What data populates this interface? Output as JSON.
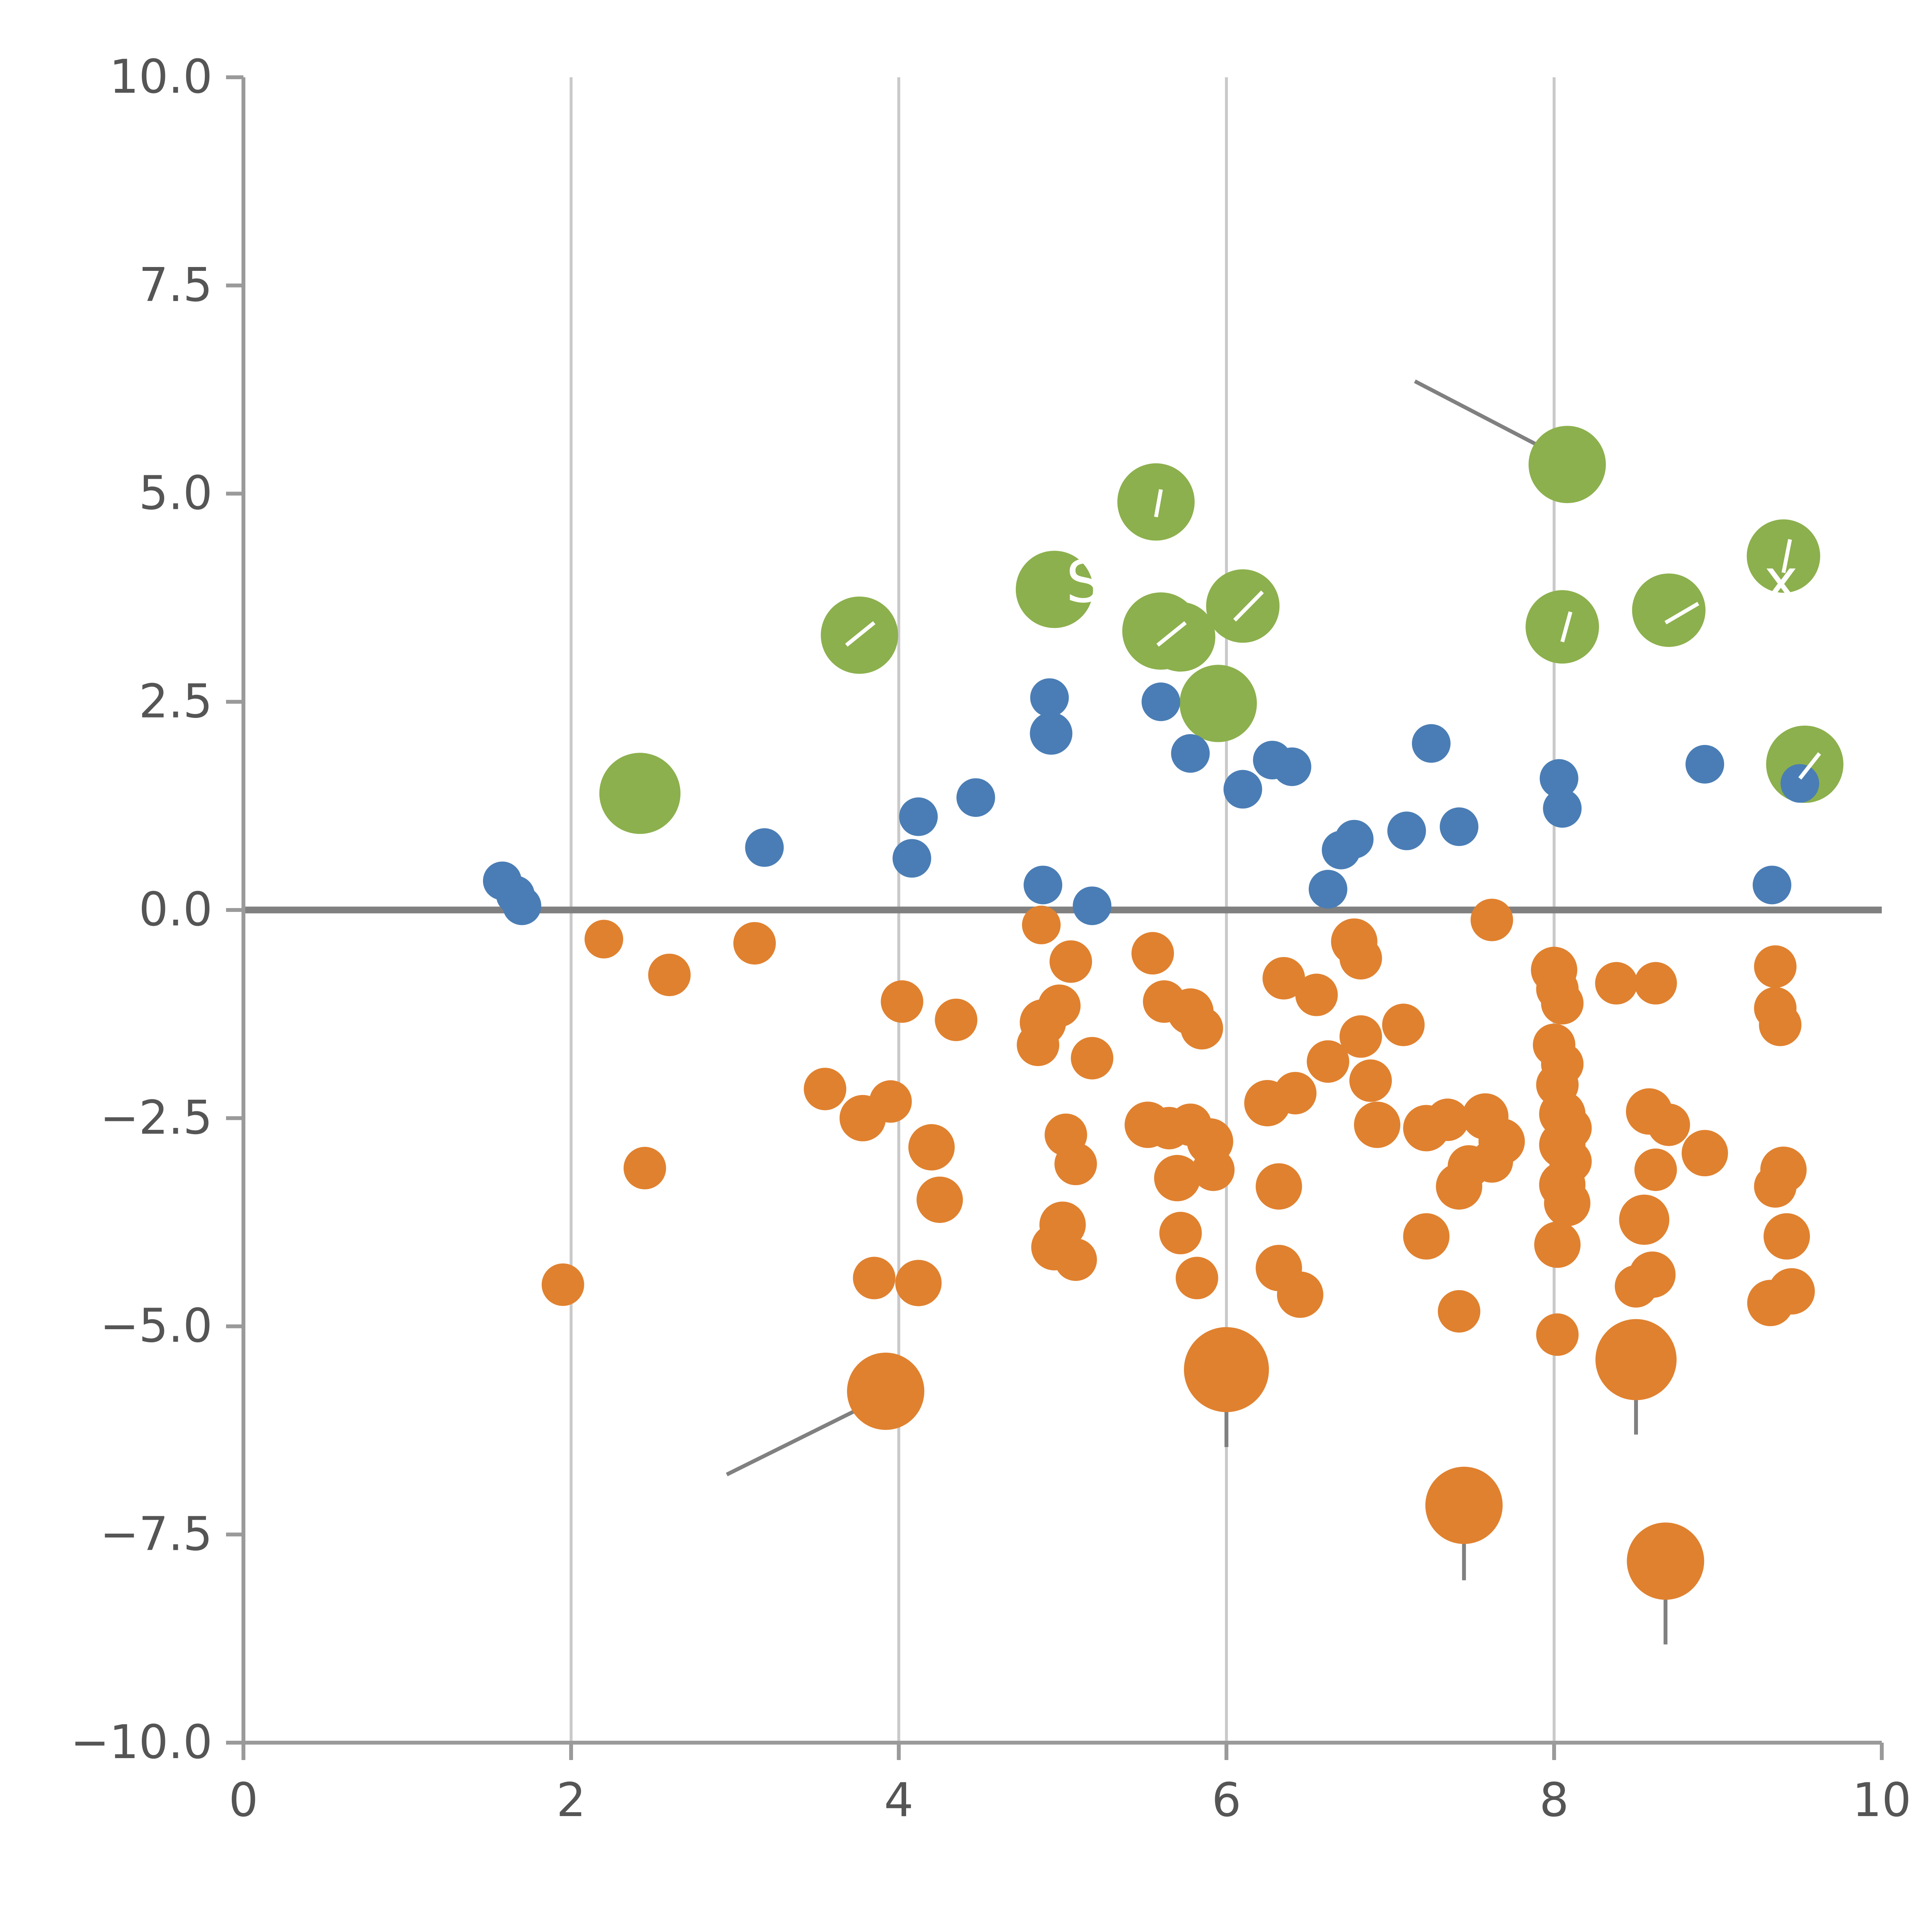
{
  "chart_data": {
    "type": "scatter",
    "title": "",
    "xlabel": "",
    "ylabel": "",
    "xlim": [
      0,
      10
    ],
    "ylim": [
      -10,
      10
    ],
    "x_ticks": [
      0,
      2,
      4,
      6,
      8,
      10
    ],
    "x_tick_labels": [
      "0",
      "2",
      "4",
      "6",
      "8",
      "10"
    ],
    "y_ticks": [
      10.0,
      7.5,
      5.0,
      2.5,
      0.0,
      -2.5,
      -5.0,
      -7.5,
      -10.0
    ],
    "y_tick_labels": [
      "10.0",
      "7.5",
      "5.0",
      "2.5",
      "0.0",
      "−2.5",
      "−5.0",
      "−7.5",
      "−10.0"
    ],
    "grid": "vertical-only",
    "grid_lines_x": [
      2,
      4,
      6,
      8
    ],
    "zero_line": {
      "y": 0,
      "color": "#808080",
      "width": 3.5
    },
    "legend": "none",
    "colors": {
      "blue": "#4a7db5",
      "green": "#8cb04d",
      "orange": "#e0812f",
      "grid": "#c9c9c9",
      "axis": "#9a9a9a",
      "tick_label": "#555555",
      "leader": "#808080",
      "white_annotation": "#ffffff"
    },
    "series": [
      {
        "name": "blue",
        "color": "#4a7db5",
        "points": [
          [
            1.58,
            0.35,
            10
          ],
          [
            1.66,
            0.18,
            10
          ],
          [
            1.7,
            0.05,
            10
          ],
          [
            3.18,
            0.75,
            10
          ],
          [
            4.08,
            0.62,
            10
          ],
          [
            4.12,
            1.12,
            10
          ],
          [
            4.47,
            1.35,
            10
          ],
          [
            4.88,
            0.3,
            10
          ],
          [
            4.93,
            2.12,
            11
          ],
          [
            4.92,
            2.55,
            10
          ],
          [
            5.18,
            0.05,
            10
          ],
          [
            5.6,
            2.5,
            10
          ],
          [
            5.78,
            1.88,
            10
          ],
          [
            6.1,
            1.45,
            10
          ],
          [
            6.28,
            1.8,
            10
          ],
          [
            6.4,
            1.72,
            10
          ],
          [
            6.62,
            0.25,
            10
          ],
          [
            6.7,
            0.72,
            10
          ],
          [
            6.78,
            0.85,
            10
          ],
          [
            7.1,
            0.95,
            10
          ],
          [
            7.25,
            2.0,
            10
          ],
          [
            7.42,
            1.0,
            10
          ],
          [
            8.03,
            1.58,
            10
          ],
          [
            8.05,
            1.22,
            10
          ],
          [
            8.92,
            1.75,
            10
          ],
          [
            9.33,
            0.3,
            10
          ],
          [
            9.5,
            1.52,
            10
          ]
        ]
      },
      {
        "name": "green",
        "color": "#8cb04d",
        "points": [
          [
            2.42,
            1.4,
            21
          ],
          [
            3.76,
            3.3,
            20
          ],
          [
            4.95,
            3.85,
            20
          ],
          [
            5.57,
            4.9,
            20
          ],
          [
            5.6,
            3.35,
            20
          ],
          [
            5.72,
            3.28,
            18
          ],
          [
            6.1,
            3.65,
            19
          ],
          [
            5.95,
            2.48,
            20
          ],
          [
            8.08,
            5.35,
            20
          ],
          [
            8.05,
            3.4,
            19
          ],
          [
            8.7,
            3.6,
            19
          ],
          [
            9.4,
            4.25,
            19
          ],
          [
            9.53,
            1.75,
            20
          ]
        ]
      },
      {
        "name": "orange",
        "color": "#e0812f",
        "points": [
          [
            2.2,
            -0.35,
            10
          ],
          [
            2.6,
            -0.78,
            11
          ],
          [
            3.12,
            -0.4,
            11
          ],
          [
            1.95,
            -4.5,
            11
          ],
          [
            2.45,
            -3.1,
            11
          ],
          [
            3.55,
            -2.15,
            11
          ],
          [
            3.78,
            -2.5,
            12
          ],
          [
            3.95,
            -2.3,
            11
          ],
          [
            4.02,
            -1.1,
            11
          ],
          [
            4.35,
            -1.32,
            11
          ],
          [
            4.2,
            -2.85,
            12
          ],
          [
            4.25,
            -3.48,
            12
          ],
          [
            3.85,
            -4.42,
            11
          ],
          [
            4.12,
            -4.48,
            12
          ],
          [
            3.92,
            -5.78,
            20
          ],
          [
            4.87,
            -0.18,
            10
          ],
          [
            5.05,
            -0.62,
            11
          ],
          [
            4.88,
            -1.35,
            12
          ],
          [
            4.98,
            -1.15,
            11
          ],
          [
            4.85,
            -1.62,
            11
          ],
          [
            5.18,
            -1.78,
            11
          ],
          [
            5.02,
            -2.7,
            11
          ],
          [
            5.08,
            -3.05,
            11
          ],
          [
            5.0,
            -3.78,
            12
          ],
          [
            4.95,
            -4.05,
            12
          ],
          [
            5.08,
            -4.2,
            11
          ],
          [
            5.55,
            -0.52,
            11
          ],
          [
            5.62,
            -1.1,
            11
          ],
          [
            5.78,
            -1.22,
            12
          ],
          [
            5.85,
            -1.42,
            11
          ],
          [
            5.52,
            -2.58,
            12
          ],
          [
            5.65,
            -2.62,
            11
          ],
          [
            5.78,
            -2.58,
            11
          ],
          [
            5.9,
            -2.78,
            12
          ],
          [
            5.7,
            -3.22,
            12
          ],
          [
            5.92,
            -3.12,
            11
          ],
          [
            5.72,
            -3.88,
            11
          ],
          [
            5.82,
            -4.42,
            11
          ],
          [
            6.0,
            -5.52,
            22
          ],
          [
            6.35,
            -0.82,
            11
          ],
          [
            6.55,
            -1.02,
            11
          ],
          [
            6.25,
            -2.32,
            12
          ],
          [
            6.42,
            -2.2,
            11
          ],
          [
            6.32,
            -3.32,
            12
          ],
          [
            6.32,
            -4.3,
            12
          ],
          [
            6.45,
            -4.62,
            12
          ],
          [
            6.62,
            -1.82,
            11
          ],
          [
            6.78,
            -0.38,
            12
          ],
          [
            6.82,
            -0.58,
            11
          ],
          [
            6.82,
            -1.52,
            11
          ],
          [
            6.88,
            -2.05,
            11
          ],
          [
            6.92,
            -2.58,
            12
          ],
          [
            7.08,
            -1.38,
            11
          ],
          [
            7.22,
            -2.62,
            12
          ],
          [
            7.35,
            -2.52,
            11
          ],
          [
            7.22,
            -3.92,
            12
          ],
          [
            7.42,
            -3.32,
            12
          ],
          [
            7.48,
            -3.08,
            11
          ],
          [
            7.42,
            -4.82,
            11
          ],
          [
            7.45,
            -7.15,
            20
          ],
          [
            7.62,
            -0.12,
            11
          ],
          [
            7.58,
            -2.48,
            12
          ],
          [
            7.68,
            -2.78,
            12
          ],
          [
            7.62,
            -3.02,
            11
          ],
          [
            8.0,
            -0.72,
            12
          ],
          [
            8.02,
            -0.95,
            11
          ],
          [
            8.05,
            -1.12,
            11
          ],
          [
            8.0,
            -1.62,
            11
          ],
          [
            8.05,
            -1.85,
            11
          ],
          [
            8.02,
            -2.1,
            11
          ],
          [
            8.05,
            -2.45,
            12
          ],
          [
            8.1,
            -2.62,
            11
          ],
          [
            8.05,
            -2.82,
            12
          ],
          [
            8.1,
            -3.02,
            11
          ],
          [
            8.05,
            -3.3,
            12
          ],
          [
            8.08,
            -3.52,
            12
          ],
          [
            8.02,
            -4.02,
            12
          ],
          [
            8.02,
            -5.1,
            11
          ],
          [
            8.38,
            -0.88,
            11
          ],
          [
            8.5,
            -5.4,
            21
          ],
          [
            8.55,
            -3.72,
            13
          ],
          [
            8.62,
            -0.88,
            11
          ],
          [
            8.58,
            -2.42,
            12
          ],
          [
            8.7,
            -2.58,
            11
          ],
          [
            8.62,
            -3.12,
            11
          ],
          [
            8.6,
            -4.38,
            12
          ],
          [
            8.5,
            -4.52,
            11
          ],
          [
            8.68,
            -7.82,
            20
          ],
          [
            8.92,
            -2.92,
            12
          ],
          [
            9.35,
            -0.68,
            11
          ],
          [
            9.35,
            -1.18,
            11
          ],
          [
            9.38,
            -1.38,
            11
          ],
          [
            9.4,
            -3.12,
            12
          ],
          [
            9.35,
            -3.32,
            11
          ],
          [
            9.42,
            -3.92,
            12
          ],
          [
            9.32,
            -4.72,
            12
          ],
          [
            9.45,
            -4.58,
            12
          ]
        ]
      }
    ],
    "leader_lines": [
      {
        "x1": 7.15,
        "y1": 6.35,
        "x2": 8.0,
        "y2": 5.48,
        "color": "#808080",
        "width": 2
      },
      {
        "x1": 2.95,
        "y1": -6.78,
        "x2": 3.8,
        "y2": -5.95,
        "color": "#808080",
        "width": 2
      },
      {
        "x1": 6.0,
        "y1": -5.95,
        "x2": 6.0,
        "y2": -6.45,
        "color": "#808080",
        "width": 2
      },
      {
        "x1": 7.45,
        "y1": -7.6,
        "x2": 7.45,
        "y2": -8.05,
        "color": "#808080",
        "width": 2
      },
      {
        "x1": 8.5,
        "y1": -5.85,
        "x2": 8.5,
        "y2": -6.3,
        "color": "#808080",
        "width": 2
      },
      {
        "x1": 8.68,
        "y1": -8.28,
        "x2": 8.68,
        "y2": -8.82,
        "color": "#808080",
        "width": 2
      },
      {
        "x1": 5.57,
        "y1": 4.72,
        "x2": 5.6,
        "y2": 5.05,
        "color": "#ffffff",
        "width": 2
      },
      {
        "x1": 9.4,
        "y1": 4.05,
        "x2": 9.44,
        "y2": 4.45,
        "color": "#ffffff",
        "width": 2
      },
      {
        "x1": 8.05,
        "y1": 3.22,
        "x2": 8.1,
        "y2": 3.58,
        "color": "#ffffff",
        "width": 2
      },
      {
        "x1": 3.68,
        "y1": 3.18,
        "x2": 3.85,
        "y2": 3.45,
        "color": "#ffffff",
        "width": 2
      },
      {
        "x1": 6.05,
        "y1": 3.48,
        "x2": 6.22,
        "y2": 3.82,
        "color": "#ffffff",
        "width": 2
      },
      {
        "x1": 8.68,
        "y1": 3.45,
        "x2": 8.88,
        "y2": 3.68,
        "color": "#ffffff",
        "width": 2
      },
      {
        "x1": 5.58,
        "y1": 3.18,
        "x2": 5.75,
        "y2": 3.45,
        "color": "#ffffff",
        "width": 2
      },
      {
        "x1": 9.5,
        "y1": 1.58,
        "x2": 9.62,
        "y2": 1.88,
        "color": "#ffffff",
        "width": 2
      },
      {
        "x1": 8.02,
        "y1": 4.35,
        "x2": 8.04,
        "y2": 4.62,
        "color": "#ffffff",
        "width": 2
      }
    ],
    "annotations": [
      {
        "text": "S",
        "x": 5.02,
        "y": 3.7,
        "color": "#ffffff",
        "size": 30
      },
      {
        "text": "x",
        "x": 9.28,
        "y": 3.72,
        "color": "#ffffff",
        "size": 30
      }
    ]
  }
}
